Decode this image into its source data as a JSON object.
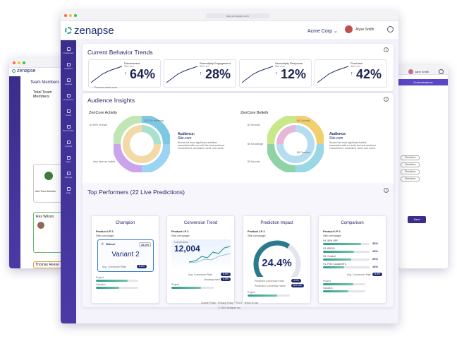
{
  "main": {
    "url": "app.zenapse.com",
    "logo": "zenapse",
    "company": "Acme Corp",
    "user": "Alyse Smith",
    "sidebar": [
      "Dashboard",
      "Analytics",
      "Insights",
      "Predictions",
      "Goals",
      "Benchmark",
      "Content",
      "Team",
      "Settings",
      "Help"
    ],
    "trends": {
      "title": "Current Behavior Trends",
      "cards": [
        {
          "label": "Discernment",
          "source": "Site.com",
          "value": "64%"
        },
        {
          "label": "Serendipity Engagement",
          "source": "Site.com",
          "value": "28%"
        },
        {
          "label": "Serendipity Response",
          "source": "Site.com",
          "value": "12%"
        },
        {
          "label": "Purchase",
          "source": "Site.com",
          "value": "42%"
        }
      ],
      "footnote": "Previous week trend"
    },
    "audience": {
      "title": "Audience Insights",
      "left": {
        "heading": "ZenCore Activity",
        "center_title": "Audience:",
        "center_sub": "Site.com",
        "desc": "Shows the most significant activities associated with our both the best audience. Commitment, consistent, week over week.",
        "labels": [
          "$4.50% of leads",
          "$22.3% returning",
          "Also seen as invited"
        ]
      },
      "right": {
        "heading": "ZenCore Beliefs",
        "center_title": "Audience:",
        "center_sub": "Site.com",
        "desc": "Shows the most significant beliefs associated with our both the best audience. Commitment, consistent, week over week.",
        "labels": [
          "$4 Curiosity",
          "$3 Security",
          "$5 Knowledge",
          "$8 Freedom",
          "$5 Security"
        ]
      }
    },
    "performers": {
      "title": "Top Performers (22 Live Predictions)",
      "champion": {
        "title": "Champion",
        "product": "Product LP 2",
        "url": "Site.com/page",
        "winner": "Winner",
        "percent": "32.4%",
        "variant": "Variant 2",
        "avg_label": "Avg. Conversion Rate",
        "avg_value": "8.5%",
        "legend": [
          "Project",
          "Variation"
        ],
        "progress": [
          0.75,
          0.55
        ]
      },
      "trend": {
        "title": "Conversion Trend",
        "product": "Product LP 2",
        "url": "Site.com/page",
        "count_label": "Conversions",
        "count": "12,004",
        "avg_label": "Avg. Conversion Rate",
        "avg_value": "8.5%",
        "uplift_label": "Uncategorized",
        "uplift_value": "0.5%",
        "legend": "Project",
        "progress": [
          0.7
        ]
      },
      "impact": {
        "title": "Prediction Impact",
        "product": "Product LP 2",
        "url": "Site.com/page",
        "value": "24.4%",
        "gauge": 0.62,
        "row1_label": "Predicted Conversion Rate",
        "row1_value": "4.5%",
        "row2_label": "Prediction Conversion Value",
        "row2_value": "$19.3M",
        "legend": "Project",
        "progress": [
          0.7
        ]
      },
      "comparison": {
        "title": "Comparison",
        "product": "Product LP 2",
        "url": "Site.com/page",
        "rows": [
          {
            "label": "V4. 50% OFF",
            "value": "33%",
            "level": 0.82
          },
          {
            "label": "V3. BOGO",
            "value": "23%",
            "level": 0.66
          },
          {
            "label": "V5. Control",
            "value": "23%",
            "level": 0.6
          },
          {
            "label": "V1. Free Cookie BTC",
            "value": "16%",
            "level": 0.45
          }
        ],
        "avg_label": "Avg. Conversion Rate",
        "avg_value": "8.5%",
        "legend": [
          "Project",
          "Variation"
        ]
      }
    },
    "footer_links": [
      "Cookie Policy",
      "Privacy Policy",
      "EULA",
      "Terms of use"
    ],
    "copyright": "© 2024 Zenapse Inc."
  },
  "left_window": {
    "logo": "zenapse",
    "heading": "Team Members",
    "total": "Total Team Members",
    "member1": "Rex Wilson",
    "member2": "Thomas Reese",
    "add": "Add Team Member"
  },
  "right_window": {
    "user": "Jane Smith",
    "bar_label": "Customizations",
    "options": [
      "Checkbox",
      "Checkbox",
      "Checkbox",
      "Checkbox"
    ],
    "next": "Next"
  }
}
